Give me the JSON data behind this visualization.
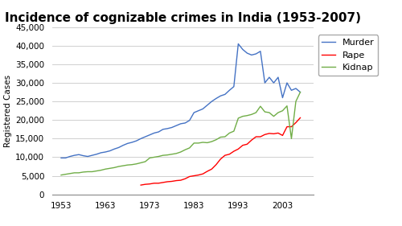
{
  "title": "Incidence of cognizable crimes in India (1953-2007)",
  "ylabel": "Registered Cases",
  "ylim": [
    0,
    45000
  ],
  "yticks": [
    0,
    5000,
    10000,
    15000,
    20000,
    25000,
    30000,
    35000,
    40000,
    45000
  ],
  "background_color": "#ffffff",
  "plot_bg_color": "#ffffff",
  "murder": {
    "years": [
      1953,
      1954,
      1955,
      1956,
      1957,
      1958,
      1959,
      1960,
      1961,
      1962,
      1963,
      1964,
      1965,
      1966,
      1967,
      1968,
      1969,
      1970,
      1971,
      1972,
      1973,
      1974,
      1975,
      1976,
      1977,
      1978,
      1979,
      1980,
      1981,
      1982,
      1983,
      1984,
      1985,
      1986,
      1987,
      1988,
      1989,
      1990,
      1991,
      1992,
      1993,
      1994,
      1995,
      1996,
      1997,
      1998,
      1999,
      2000,
      2001,
      2002,
      2003,
      2004,
      2005,
      2006,
      2007
    ],
    "values": [
      9800,
      9800,
      10200,
      10500,
      10700,
      10400,
      10200,
      10500,
      10800,
      11200,
      11400,
      11700,
      12200,
      12600,
      13200,
      13700,
      14000,
      14400,
      15000,
      15500,
      16000,
      16500,
      16800,
      17500,
      17700,
      18000,
      18500,
      19000,
      19200,
      19900,
      22000,
      22500,
      23000,
      24000,
      25000,
      25800,
      26500,
      26900,
      28000,
      29000,
      40500,
      39000,
      38000,
      37500,
      37800,
      38500,
      30000,
      31500,
      30000,
      31500,
      26000,
      30000,
      28000,
      28500,
      27500
    ],
    "color": "#4472C4"
  },
  "rape": {
    "years": [
      1971,
      1972,
      1973,
      1974,
      1975,
      1976,
      1977,
      1978,
      1979,
      1980,
      1981,
      1982,
      1983,
      1984,
      1985,
      1986,
      1987,
      1988,
      1989,
      1990,
      1991,
      1992,
      1993,
      1994,
      1995,
      1996,
      1997,
      1998,
      1999,
      2000,
      2001,
      2002,
      2003,
      2004,
      2005,
      2006,
      2007
    ],
    "values": [
      2500,
      2700,
      2800,
      3000,
      3000,
      3200,
      3400,
      3500,
      3700,
      3800,
      4200,
      4800,
      5000,
      5200,
      5500,
      6200,
      6800,
      8000,
      9500,
      10500,
      10800,
      11600,
      12200,
      13200,
      13500,
      14600,
      15500,
      15500,
      16100,
      16400,
      16300,
      16500,
      15850,
      18200,
      18200,
      19300,
      20600
    ],
    "color": "#FF0000"
  },
  "kidnap": {
    "years": [
      1953,
      1954,
      1955,
      1956,
      1957,
      1958,
      1959,
      1960,
      1961,
      1962,
      1963,
      1964,
      1965,
      1966,
      1967,
      1968,
      1969,
      1970,
      1971,
      1972,
      1973,
      1974,
      1975,
      1976,
      1977,
      1978,
      1979,
      1980,
      1981,
      1982,
      1983,
      1984,
      1985,
      1986,
      1987,
      1988,
      1989,
      1990,
      1991,
      1992,
      1993,
      1994,
      1995,
      1996,
      1997,
      1998,
      1999,
      2000,
      2001,
      2002,
      2003,
      2004,
      2005,
      2006,
      2007
    ],
    "values": [
      5200,
      5400,
      5600,
      5800,
      5800,
      6000,
      6100,
      6100,
      6300,
      6500,
      6800,
      7000,
      7200,
      7500,
      7700,
      7900,
      8000,
      8200,
      8500,
      8800,
      9800,
      10000,
      10200,
      10500,
      10600,
      10800,
      11000,
      11400,
      12000,
      12500,
      13800,
      13800,
      14000,
      13900,
      14200,
      14700,
      15400,
      15500,
      16500,
      17000,
      20500,
      21000,
      21200,
      21500,
      22000,
      23700,
      22200,
      22000,
      21000,
      22000,
      22500,
      23800,
      15000,
      25000,
      27500
    ],
    "color": "#70AD47"
  },
  "xticks": [
    1953,
    1963,
    1973,
    1983,
    1993,
    2003
  ],
  "xlim": [
    1951,
    2010
  ],
  "legend_labels": [
    "Murder",
    "Rape",
    "Kidnap"
  ],
  "title_fontsize": 11,
  "axis_fontsize": 7.5,
  "tick_fontsize": 7.5,
  "legend_fontsize": 8
}
